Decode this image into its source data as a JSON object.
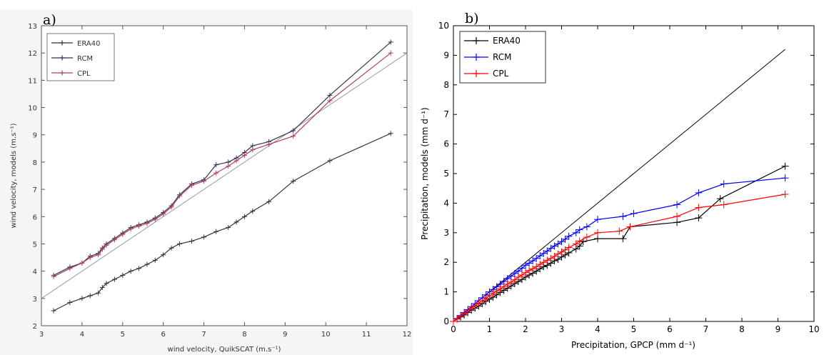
{
  "chart_data": [
    {
      "panel": "a)",
      "type": "line",
      "xlabel": "wind velocity, QuikSCAT (m.s⁻¹)",
      "ylabel": "wind velocity, models (m.s⁻¹)",
      "xlim": [
        3,
        12
      ],
      "ylim": [
        2,
        13
      ],
      "xticks": [
        3,
        4,
        5,
        6,
        7,
        8,
        9,
        10,
        11,
        12
      ],
      "yticks": [
        2,
        3,
        4,
        5,
        6,
        7,
        8,
        9,
        10,
        11,
        12,
        13
      ],
      "grid": false,
      "legend_position": "top-left",
      "reference_line": {
        "x": [
          3,
          12
        ],
        "y": [
          3,
          12
        ],
        "color": "#999999"
      },
      "series": [
        {
          "name": "ERA40",
          "color": "#333333",
          "x": [
            3.3,
            3.7,
            4.0,
            4.2,
            4.4,
            4.5,
            4.6,
            4.8,
            5.0,
            5.2,
            5.4,
            5.6,
            5.8,
            6.0,
            6.2,
            6.4,
            6.7,
            7.0,
            7.3,
            7.6,
            7.8,
            8.0,
            8.2,
            8.6,
            9.2,
            10.1,
            11.6
          ],
          "y": [
            2.55,
            2.85,
            3.0,
            3.1,
            3.2,
            3.4,
            3.55,
            3.7,
            3.85,
            4.0,
            4.1,
            4.25,
            4.4,
            4.6,
            4.85,
            5.0,
            5.1,
            5.25,
            5.45,
            5.6,
            5.8,
            6.0,
            6.2,
            6.55,
            7.3,
            8.05,
            9.05
          ]
        },
        {
          "name": "RCM",
          "color": "#333355",
          "x": [
            3.3,
            3.7,
            4.0,
            4.2,
            4.4,
            4.5,
            4.6,
            4.8,
            5.0,
            5.2,
            5.4,
            5.6,
            5.8,
            6.0,
            6.2,
            6.4,
            6.7,
            7.0,
            7.3,
            7.6,
            7.8,
            8.0,
            8.2,
            8.6,
            9.2,
            10.1,
            11.6
          ],
          "y": [
            3.85,
            4.15,
            4.3,
            4.55,
            4.65,
            4.85,
            5.0,
            5.2,
            5.4,
            5.6,
            5.7,
            5.8,
            5.95,
            6.15,
            6.4,
            6.8,
            7.2,
            7.35,
            7.9,
            8.0,
            8.15,
            8.35,
            8.6,
            8.75,
            9.15,
            10.45,
            12.4
          ]
        },
        {
          "name": "CPL",
          "color": "#b04060",
          "x": [
            3.3,
            3.7,
            4.0,
            4.2,
            4.4,
            4.5,
            4.6,
            4.8,
            5.0,
            5.2,
            5.4,
            5.6,
            5.8,
            6.0,
            6.2,
            6.4,
            6.7,
            7.0,
            7.3,
            7.6,
            7.8,
            8.0,
            8.2,
            8.6,
            9.2,
            10.1,
            11.6
          ],
          "y": [
            3.8,
            4.1,
            4.3,
            4.5,
            4.6,
            4.8,
            4.95,
            5.15,
            5.35,
            5.55,
            5.65,
            5.75,
            5.9,
            6.1,
            6.35,
            6.75,
            7.15,
            7.3,
            7.6,
            7.85,
            8.05,
            8.25,
            8.45,
            8.65,
            8.95,
            10.25,
            12.0
          ]
        }
      ]
    },
    {
      "panel": "b)",
      "type": "line",
      "xlabel": "Precipitation, GPCP (mm d⁻¹)",
      "ylabel": "Precipitation, models (mm d⁻¹)",
      "xlim": [
        0,
        10
      ],
      "ylim": [
        0,
        10
      ],
      "xticks": [
        0,
        1,
        2,
        3,
        4,
        5,
        6,
        7,
        8,
        9,
        10
      ],
      "yticks": [
        0,
        1,
        2,
        3,
        4,
        5,
        6,
        7,
        8,
        9,
        10
      ],
      "grid": false,
      "legend_position": "top-left",
      "reference_line": {
        "x": [
          0,
          9.2
        ],
        "y": [
          0,
          9.2
        ],
        "color": "#000000"
      },
      "series": [
        {
          "name": "ERA40",
          "color": "#000000",
          "x": [
            0,
            0.1,
            0.2,
            0.3,
            0.4,
            0.5,
            0.6,
            0.7,
            0.8,
            0.9,
            1.0,
            1.1,
            1.2,
            1.3,
            1.4,
            1.5,
            1.6,
            1.7,
            1.8,
            1.9,
            2.0,
            2.1,
            2.2,
            2.3,
            2.4,
            2.5,
            2.6,
            2.7,
            2.8,
            2.9,
            3.0,
            3.1,
            3.2,
            3.4,
            3.5,
            3.6,
            4.0,
            4.7,
            4.9,
            6.2,
            6.8,
            7.4,
            9.2
          ],
          "y": [
            0,
            0.08,
            0.15,
            0.22,
            0.3,
            0.38,
            0.45,
            0.52,
            0.6,
            0.68,
            0.75,
            0.82,
            0.9,
            0.98,
            1.05,
            1.12,
            1.2,
            1.28,
            1.35,
            1.42,
            1.5,
            1.57,
            1.63,
            1.7,
            1.78,
            1.85,
            1.9,
            1.97,
            2.05,
            2.1,
            2.18,
            2.25,
            2.32,
            2.45,
            2.55,
            2.7,
            2.8,
            2.8,
            3.2,
            3.35,
            3.5,
            4.15,
            5.25
          ]
        },
        {
          "name": "RCM",
          "color": "#0000ff",
          "x": [
            0,
            0.1,
            0.2,
            0.3,
            0.4,
            0.5,
            0.6,
            0.7,
            0.8,
            0.9,
            1.0,
            1.1,
            1.2,
            1.3,
            1.4,
            1.5,
            1.6,
            1.7,
            1.8,
            1.9,
            2.0,
            2.1,
            2.2,
            2.3,
            2.4,
            2.5,
            2.6,
            2.7,
            2.8,
            2.9,
            3.0,
            3.1,
            3.2,
            3.4,
            3.5,
            3.7,
            4.0,
            4.7,
            5.0,
            6.2,
            6.8,
            7.5,
            9.2
          ],
          "y": [
            0,
            0.1,
            0.2,
            0.3,
            0.4,
            0.5,
            0.6,
            0.7,
            0.8,
            0.9,
            1.0,
            1.08,
            1.17,
            1.26,
            1.35,
            1.45,
            1.53,
            1.62,
            1.7,
            1.8,
            1.9,
            1.97,
            2.05,
            2.13,
            2.22,
            2.3,
            2.38,
            2.47,
            2.55,
            2.62,
            2.7,
            2.78,
            2.88,
            3.0,
            3.1,
            3.2,
            3.45,
            3.55,
            3.65,
            3.95,
            4.35,
            4.65,
            4.85
          ]
        },
        {
          "name": "CPL",
          "color": "#ff0000",
          "x": [
            0,
            0.1,
            0.2,
            0.3,
            0.4,
            0.5,
            0.6,
            0.7,
            0.8,
            0.9,
            1.0,
            1.1,
            1.2,
            1.3,
            1.4,
            1.5,
            1.6,
            1.7,
            1.8,
            1.9,
            2.0,
            2.1,
            2.2,
            2.3,
            2.4,
            2.5,
            2.6,
            2.7,
            2.8,
            2.9,
            3.0,
            3.1,
            3.2,
            3.4,
            3.5,
            3.7,
            4.0,
            4.6,
            4.9,
            6.2,
            6.8,
            7.5,
            9.2
          ],
          "y": [
            0,
            0.09,
            0.18,
            0.27,
            0.36,
            0.45,
            0.53,
            0.62,
            0.7,
            0.78,
            0.87,
            0.95,
            1.03,
            1.1,
            1.18,
            1.26,
            1.33,
            1.41,
            1.5,
            1.57,
            1.65,
            1.72,
            1.78,
            1.85,
            1.93,
            2.0,
            2.07,
            2.13,
            2.2,
            2.28,
            2.35,
            2.42,
            2.5,
            2.62,
            2.72,
            2.85,
            3.0,
            3.05,
            3.2,
            3.55,
            3.85,
            3.95,
            4.3
          ]
        }
      ]
    }
  ]
}
